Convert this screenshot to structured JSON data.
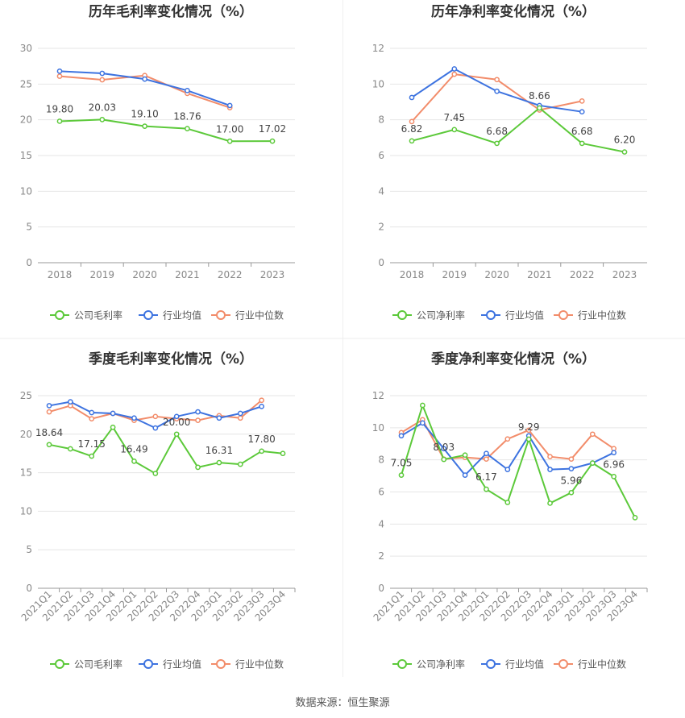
{
  "colors": {
    "company": "#5cc93a",
    "avg": "#3d73e0",
    "median": "#f28c6a",
    "grid": "#e6e6e6",
    "axis": "#999999",
    "title": "#333333",
    "text": "#888888"
  },
  "legend": {
    "avg": "行业均值",
    "median": "行业中位数"
  },
  "source_text": "数据来源：恒生聚源",
  "chart_data": [
    {
      "type": "line",
      "title": "历年毛利率变化情况（%）",
      "categories": [
        "2018",
        "2019",
        "2020",
        "2021",
        "2022",
        "2023"
      ],
      "ylim": [
        0,
        30
      ],
      "yticks": [
        0,
        5,
        10,
        15,
        20,
        25,
        30
      ],
      "legend_position": "bottom",
      "series": [
        {
          "name": "公司毛利率",
          "key": "company",
          "values": [
            19.8,
            20.03,
            19.1,
            18.76,
            17.0,
            17.02
          ],
          "labels": [
            "19.80",
            "20.03",
            "19.10",
            "18.76",
            "17.00",
            "17.02"
          ]
        },
        {
          "name": "行业均值",
          "key": "avg",
          "values": [
            26.8,
            26.5,
            25.7,
            24.1,
            22.0,
            null
          ]
        },
        {
          "name": "行业中位数",
          "key": "median",
          "values": [
            26.1,
            25.6,
            26.2,
            23.7,
            21.7,
            null
          ]
        }
      ]
    },
    {
      "type": "line",
      "title": "历年净利率变化情况（%）",
      "categories": [
        "2018",
        "2019",
        "2020",
        "2021",
        "2022",
        "2023"
      ],
      "ylim": [
        0,
        12
      ],
      "yticks": [
        0,
        2,
        4,
        6,
        8,
        10,
        12
      ],
      "legend_position": "bottom",
      "series": [
        {
          "name": "公司净利率",
          "key": "company",
          "values": [
            6.82,
            7.45,
            6.68,
            8.66,
            6.68,
            6.2
          ],
          "labels": [
            "6.82",
            "7.45",
            "6.68",
            "8.66",
            "6.68",
            "6.20"
          ]
        },
        {
          "name": "行业均值",
          "key": "avg",
          "values": [
            9.25,
            10.85,
            9.6,
            8.8,
            8.45,
            null
          ]
        },
        {
          "name": "行业中位数",
          "key": "median",
          "values": [
            7.9,
            10.55,
            10.25,
            8.55,
            9.05,
            null
          ]
        }
      ]
    },
    {
      "type": "line",
      "title": "季度毛利率变化情况（%）",
      "categories": [
        "2021Q1",
        "2021Q2",
        "2021Q3",
        "2021Q4",
        "2022Q1",
        "2022Q2",
        "2022Q3",
        "2022Q4",
        "2023Q1",
        "2023Q2",
        "2023Q3",
        "2023Q4"
      ],
      "ylim": [
        0,
        25
      ],
      "yticks": [
        0,
        5,
        10,
        15,
        20,
        25
      ],
      "legend_position": "bottom",
      "series": [
        {
          "name": "公司毛利率",
          "key": "company",
          "values": [
            18.64,
            18.1,
            17.15,
            20.9,
            16.49,
            14.9,
            20.0,
            15.7,
            16.31,
            16.1,
            17.8,
            17.5
          ],
          "labels": [
            "18.64",
            "",
            "17.15",
            "",
            "16.49",
            "",
            "20.00",
            "",
            "16.31",
            "",
            "17.80",
            ""
          ]
        },
        {
          "name": "行业均值",
          "key": "avg",
          "values": [
            23.7,
            24.2,
            22.8,
            22.7,
            22.1,
            20.8,
            22.3,
            22.9,
            22.1,
            22.7,
            23.6,
            null
          ]
        },
        {
          "name": "行业中位数",
          "key": "median",
          "values": [
            22.9,
            23.7,
            22.0,
            22.7,
            21.8,
            22.3,
            22.0,
            21.8,
            22.4,
            22.1,
            24.4,
            null
          ]
        }
      ]
    },
    {
      "type": "line",
      "title": "季度净利率变化情况（%）",
      "categories": [
        "2021Q1",
        "2021Q2",
        "2021Q3",
        "2021Q4",
        "2022Q1",
        "2022Q2",
        "2022Q3",
        "2022Q4",
        "2023Q1",
        "2023Q2",
        "2023Q3",
        "2023Q4"
      ],
      "ylim": [
        0,
        12
      ],
      "yticks": [
        0,
        2,
        4,
        6,
        8,
        10,
        12
      ],
      "legend_position": "bottom",
      "series": [
        {
          "name": "公司净利率",
          "key": "company",
          "values": [
            7.05,
            11.4,
            8.03,
            8.3,
            6.17,
            5.35,
            9.29,
            5.3,
            5.96,
            7.8,
            6.96,
            4.4
          ],
          "labels": [
            "7.05",
            "",
            "8.03",
            "",
            "6.17",
            "",
            "9.29",
            "",
            "5.96",
            "",
            "6.96",
            ""
          ]
        },
        {
          "name": "行业均值",
          "key": "avg",
          "values": [
            9.5,
            10.3,
            8.7,
            7.05,
            8.4,
            7.4,
            9.5,
            7.4,
            7.45,
            7.8,
            8.45,
            null
          ]
        },
        {
          "name": "行业中位数",
          "key": "median",
          "values": [
            9.7,
            10.5,
            8.05,
            8.15,
            8.05,
            9.3,
            9.85,
            8.2,
            8.05,
            9.6,
            8.7,
            null
          ]
        }
      ]
    }
  ]
}
